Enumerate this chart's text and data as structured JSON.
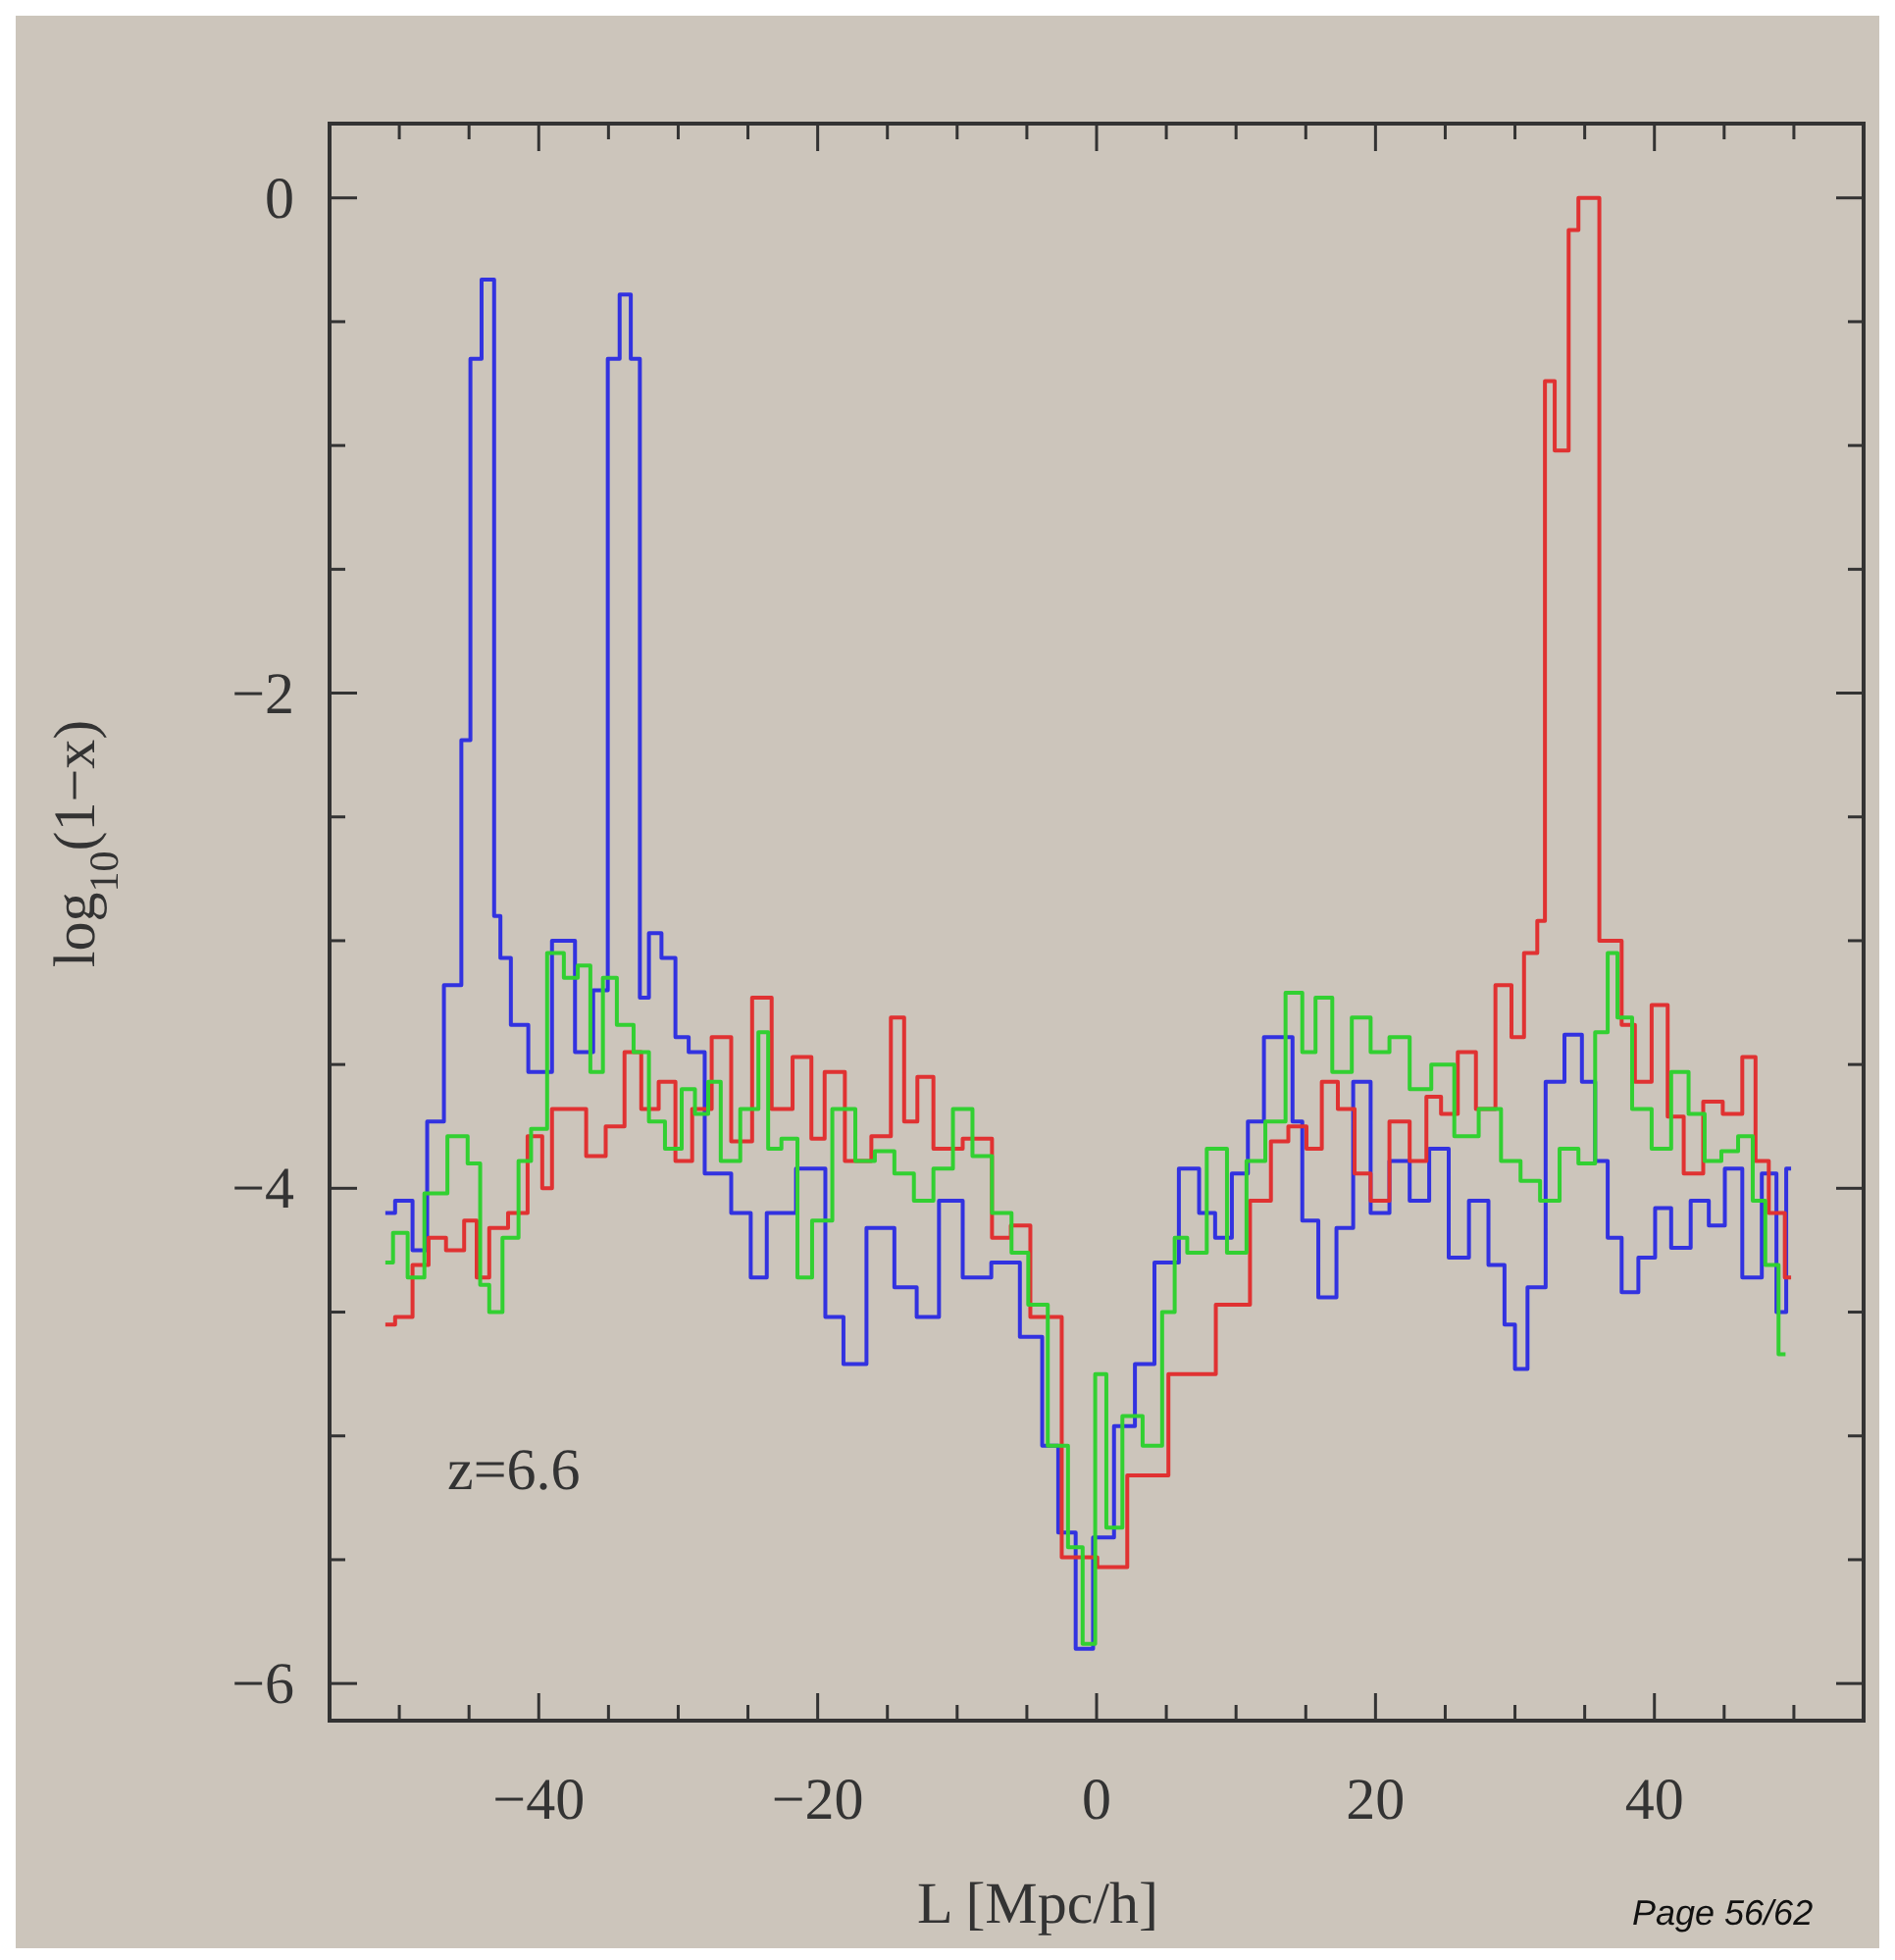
{
  "chart_data": {
    "type": "step",
    "xlabel": "L [Mpc/h]",
    "ylabel": "log$_{10}$(1−x)",
    "annotations": [
      "z=6.6",
      "Page 56/62"
    ],
    "xlim": [
      -55,
      55
    ],
    "ylim": [
      -6.15,
      0.3
    ],
    "xticks": [
      {
        "value": -50,
        "label": null
      },
      {
        "value": -45,
        "label": null
      },
      {
        "value": -40,
        "label": "−40"
      },
      {
        "value": -35,
        "label": null
      },
      {
        "value": -30,
        "label": null
      },
      {
        "value": -25,
        "label": null
      },
      {
        "value": -20,
        "label": "−20"
      },
      {
        "value": -15,
        "label": null
      },
      {
        "value": -10,
        "label": null
      },
      {
        "value": -5,
        "label": null
      },
      0,
      {
        "value": 5,
        "label": null
      },
      {
        "value": 10,
        "label": null
      },
      {
        "value": 15,
        "label": null
      },
      20,
      {
        "value": 25,
        "label": null
      },
      {
        "value": 30,
        "label": null
      },
      {
        "value": 35,
        "label": null
      },
      40,
      {
        "value": 45,
        "label": null
      },
      {
        "value": 50,
        "label": null
      }
    ],
    "yticks": [
      {
        "value": -6,
        "label": "−6"
      },
      {
        "value": -5.5,
        "label": null
      },
      {
        "value": -5,
        "label": null
      },
      {
        "value": -4.5,
        "label": null
      },
      {
        "value": -4,
        "label": "−4"
      },
      {
        "value": -3.5,
        "label": null
      },
      {
        "value": -3,
        "label": null
      },
      {
        "value": -2.5,
        "label": null
      },
      {
        "value": -2,
        "label": "−2"
      },
      {
        "value": -1.5,
        "label": null
      },
      {
        "value": -1,
        "label": null
      },
      {
        "value": -0.5,
        "label": null
      },
      0
    ],
    "series": [
      {
        "color": "#3232e0",
        "x": [
          -51,
          -49.6,
          -48.5,
          -47.5,
          -46.1,
          -45,
          -44.8,
          -43.4,
          -43,
          -42.5,
          -41.5,
          -40,
          -38.1,
          -36.7,
          -35.5,
          -34.6,
          -33.8,
          -33,
          -32.5,
          -31.7,
          -30.7,
          -29.7,
          -28.8,
          -27.4,
          -25,
          -24.6,
          -22.7,
          -20.4,
          -18.5,
          -17.8,
          -15.2,
          -13.8,
          -12,
          -10.6,
          -8.6,
          -6.5,
          -4.5,
          -3.3,
          -2.2,
          -0.8,
          0.3,
          2.2,
          3.3,
          5,
          6.8,
          7.9,
          9.1,
          10.3,
          11.4,
          12.6,
          13.8,
          14.3,
          15.2,
          16.6,
          17.8,
          19,
          20.3,
          21.7,
          23.2,
          24.5,
          26,
          27.4,
          28.8,
          29.7,
          30.3,
          31.5,
          32.9,
          34.2,
          35.4,
          36.1,
          37.2,
          38.1,
          39.6,
          40.5,
          41.9,
          43.3,
          44.5,
          45.6,
          47,
          48.4,
          49.1,
          49.8
        ],
        "values": [
          -4.1,
          -4.05,
          -4.25,
          -3.73,
          -3.18,
          -2.19,
          -0.65,
          -0.33,
          -2.9,
          -3.07,
          -3.34,
          -3.53,
          -3,
          -3.45,
          -3.2,
          -0.65,
          -0.39,
          -0.65,
          -3.23,
          -2.97,
          -3.07,
          -3.39,
          -3.45,
          -3.94,
          -4.1,
          -4.36,
          -4.1,
          -3.92,
          -4.52,
          -4.71,
          -4.16,
          -4.4,
          -4.52,
          -4.05,
          -4.36,
          -4.3,
          -4.6,
          -5.04,
          -5.39,
          -5.86,
          -5.41,
          -4.96,
          -4.71,
          -4.3,
          -3.92,
          -4.1,
          -4.2,
          -3.94,
          -3.73,
          -3.39,
          -3.39,
          -3.73,
          -4.13,
          -4.44,
          -4.16,
          -3.57,
          -4.1,
          -3.89,
          -4.05,
          -3.84,
          -4.28,
          -4.05,
          -4.31,
          -4.55,
          -4.73,
          -4.4,
          -3.57,
          -3.38,
          -3.57,
          -3.89,
          -4.2,
          -4.42,
          -4.28,
          -4.08,
          -4.24,
          -4.05,
          -4.15,
          -3.92,
          -4.36,
          -3.94,
          -4.5,
          -3.92
        ]
      },
      {
        "color": "#e03232",
        "x": [
          -51,
          -49.6,
          -48.5,
          -47.3,
          -46,
          -44.7,
          -44.2,
          -42.9,
          -41.5,
          -40.1,
          -39.4,
          -38.7,
          -37.3,
          -35.9,
          -34.5,
          -33.2,
          -32.1,
          -30.7,
          -29.7,
          -28.3,
          -26.9,
          -25.5,
          -23.9,
          -22.7,
          -20.9,
          -20,
          -19,
          -17.1,
          -15.2,
          -14.3,
          -13.3,
          -12.4,
          -11,
          -8.2,
          -6.8,
          -5.5,
          -4,
          -1,
          1.1,
          3.3,
          7,
          10.1,
          11.9,
          13.1,
          14.4,
          15.7,
          16.6,
          18,
          19,
          20.3,
          21.7,
          23.2,
          24.1,
          25.3,
          26.5,
          27.9,
          29.3,
          30.2,
          31.1,
          32.1,
          32.2,
          33.5,
          34.2,
          34.9,
          37.2,
          38.1,
          39.1,
          40.5,
          41.4,
          42.8,
          44.2,
          45.6,
          47,
          47.5,
          48.9,
          49.8
        ],
        "values": [
          -4.55,
          -4.52,
          -4.31,
          -4.2,
          -4.25,
          -4.13,
          -4.36,
          -4.16,
          -4.1,
          -3.79,
          -4.0,
          -3.68,
          -3.68,
          -3.87,
          -3.75,
          -3.45,
          -3.68,
          -3.57,
          -3.89,
          -3.68,
          -3.39,
          -3.81,
          -3.23,
          -3.68,
          -3.47,
          -3.8,
          -3.53,
          -3.89,
          -3.79,
          -3.31,
          -3.73,
          -3.55,
          -3.84,
          -3.8,
          -4.2,
          -4.15,
          -4.52,
          -5.49,
          -5.53,
          -5.16,
          -4.75,
          -4.47,
          -4.05,
          -3.81,
          -3.75,
          -3.84,
          -3.57,
          -3.68,
          -3.94,
          -4.05,
          -3.73,
          -3.89,
          -3.63,
          -3.7,
          -3.45,
          -3.68,
          -3.18,
          -3.39,
          -3.05,
          -2.92,
          -0.74,
          -1.02,
          -0.13,
          0,
          -3,
          -3.34,
          -3.57,
          -3.26,
          -3.71,
          -3.94,
          -3.65,
          -3.7,
          -3.47,
          -3.89,
          -4.1,
          -4.36
        ]
      },
      {
        "color": "#32d032",
        "x": [
          -51,
          -49.9,
          -48.9,
          -47.5,
          -45.6,
          -44.6,
          -43.8,
          -43.3,
          -41.9,
          -41,
          -40.1,
          -38.7,
          -37.7,
          -36.7,
          -35.9,
          -34.9,
          -33.9,
          -32.5,
          -31.7,
          -30.2,
          -29.3,
          -28.3,
          -27.4,
          -26.5,
          -24.6,
          -23.9,
          -23.2,
          -22,
          -20.9,
          -19.9,
          -18,
          -16.6,
          -15.2,
          -13.8,
          -12.4,
          -11,
          -9.6,
          -8.2,
          -6.8,
          -5.4,
          -4.4,
          -2.6,
          -1.5,
          -0.5,
          0.3,
          1.1,
          2.6,
          4,
          5.4,
          5.8,
          7.2,
          8.6,
          10.1,
          11.4,
          12.8,
          14.3,
          15.2,
          16.2,
          17.6,
          19,
          20.3,
          21.7,
          23.2,
          24.8,
          26.5,
          28.3,
          29.7,
          31.1,
          32.5,
          33.9,
          35.2,
          36.3,
          37,
          37.7,
          39.1,
          40.5,
          41.9,
          43,
          44.2,
          45.4,
          46.6,
          47.5,
          48.4,
          49.4
        ],
        "values": [
          -4.3,
          -4.18,
          -4.36,
          -4.02,
          -3.79,
          -3.9,
          -4.39,
          -4.5,
          -4.2,
          -3.89,
          -3.76,
          -3.05,
          -3.15,
          -3.1,
          -3.53,
          -3.15,
          -3.34,
          -3.45,
          -3.73,
          -3.84,
          -3.6,
          -3.7,
          -3.57,
          -3.89,
          -3.68,
          -3.37,
          -3.84,
          -3.8,
          -4.36,
          -4.13,
          -3.68,
          -3.89,
          -3.85,
          -3.94,
          -4.05,
          -3.92,
          -3.68,
          -3.87,
          -4.1,
          -4.26,
          -4.47,
          -5.04,
          -5.45,
          -5.84,
          -4.75,
          -5.37,
          -4.92,
          -5.04,
          -4.5,
          -4.2,
          -4.26,
          -3.84,
          -4.26,
          -3.89,
          -3.73,
          -3.21,
          -3.45,
          -3.23,
          -3.53,
          -3.31,
          -3.45,
          -3.39,
          -3.6,
          -3.5,
          -3.79,
          -3.68,
          -3.89,
          -3.97,
          -4.05,
          -3.84,
          -3.9,
          -3.37,
          -3.05,
          -3.31,
          -3.68,
          -3.84,
          -3.53,
          -3.7,
          -3.89,
          -3.85,
          -3.79,
          -4.05,
          -4.31,
          -4.67
        ]
      }
    ]
  }
}
